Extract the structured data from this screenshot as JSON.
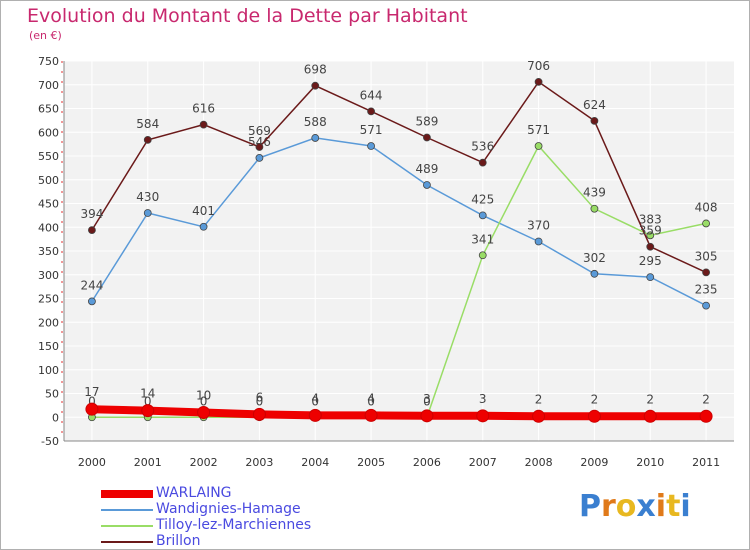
{
  "title": "Evolution du Montant de la Dette par Habitant",
  "subtitle": "(en €)",
  "logo": {
    "letters": [
      "P",
      "r",
      "o",
      "x",
      "i",
      "t",
      "i"
    ],
    "colors": [
      "#3a7fd0",
      "#e07a1a",
      "#e8b820",
      "#3a7fd0",
      "#e07a1a",
      "#e8b820",
      "#3a7fd0"
    ]
  },
  "chart_data": {
    "type": "line",
    "title": "Evolution du Montant de la Dette par Habitant",
    "subtitle": "(en €)",
    "xlabel": "",
    "ylabel": "",
    "ylim": [
      -50,
      750
    ],
    "yticks": [
      -50,
      0,
      50,
      100,
      150,
      200,
      250,
      300,
      350,
      400,
      450,
      500,
      550,
      600,
      650,
      700,
      750
    ],
    "categories": [
      "2000",
      "2001",
      "2002",
      "2003",
      "2004",
      "2005",
      "2006",
      "2007",
      "2008",
      "2009",
      "2010",
      "2011"
    ],
    "grid": true,
    "legend_position": "bottom-left",
    "series": [
      {
        "name": "WARLAING",
        "color": "#ee0000",
        "values": [
          17,
          14,
          10,
          6,
          4,
          4,
          3,
          3,
          2,
          2,
          2,
          2
        ]
      },
      {
        "name": "Wandignies-Hamage",
        "color": "#5a9ad8",
        "values": [
          244,
          430,
          401,
          546,
          588,
          571,
          489,
          425,
          370,
          302,
          295,
          235
        ]
      },
      {
        "name": "Tilloy-lez-Marchiennes",
        "color": "#99dd66",
        "values": [
          0,
          0,
          0,
          0,
          0,
          0,
          0,
          341,
          571,
          439,
          383,
          408
        ]
      },
      {
        "name": "Brillon",
        "color": "#6b1a1a",
        "values": [
          394,
          584,
          616,
          569,
          698,
          644,
          589,
          536,
          706,
          624,
          359,
          305
        ]
      }
    ]
  }
}
